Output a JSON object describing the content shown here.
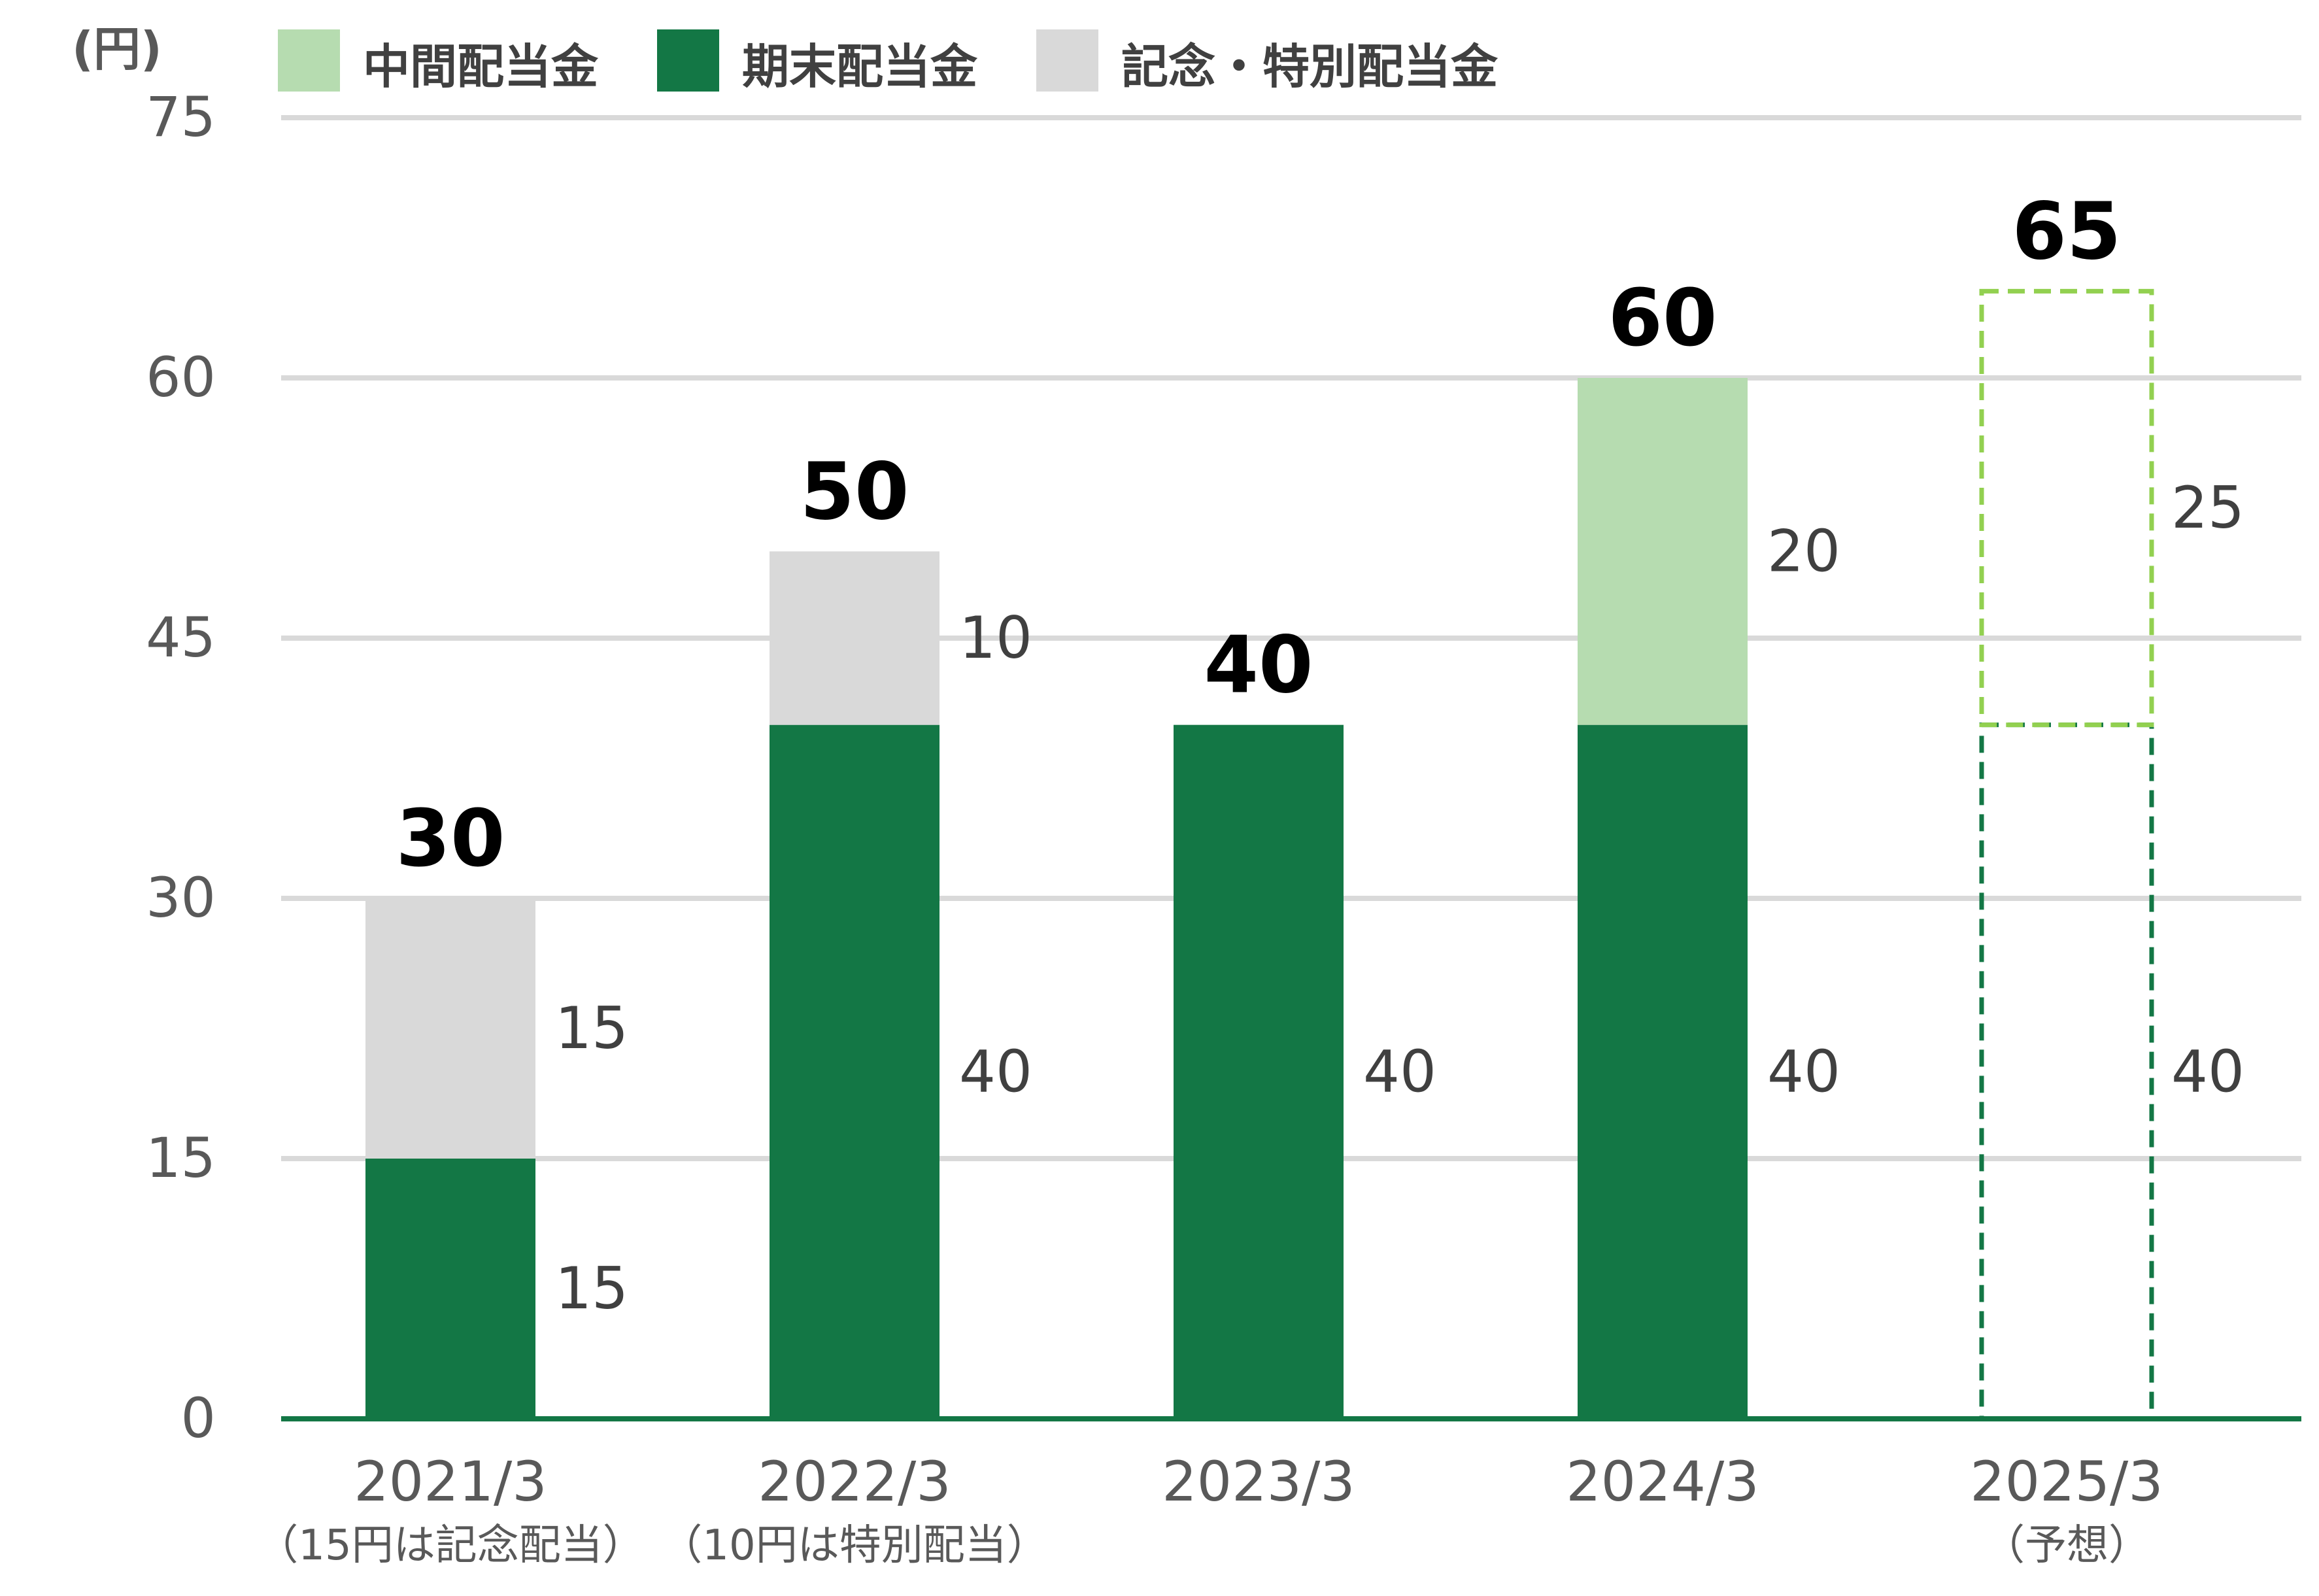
{
  "chart_data": {
    "type": "bar",
    "stacked": true,
    "unit_label": "(円)",
    "ylim": [
      0,
      75
    ],
    "yticks": [
      "0",
      "15",
      "30",
      "45",
      "60",
      "75"
    ],
    "grid": true,
    "legend_position": "top-left",
    "categories": [
      "2021/3",
      "2022/3",
      "2023/3",
      "2024/3",
      "2025/3"
    ],
    "category_notes": [
      "（15円は記念配当）",
      "（10円は特別配当）",
      "",
      "",
      "（予想）"
    ],
    "series": [
      {
        "name": "期末配当金",
        "color": "#137745",
        "values": [
          15,
          40,
          40,
          40,
          40
        ]
      },
      {
        "name": "中間配当金",
        "color": "#b6dcb0",
        "values": [
          0,
          0,
          0,
          20,
          25
        ]
      },
      {
        "name": "記念・特別配当金",
        "color": "#d9d9d9",
        "values": [
          15,
          10,
          0,
          0,
          0
        ]
      }
    ],
    "legend_order": [
      "中間配当金",
      "期末配当金",
      "記念・特別配当金"
    ],
    "forecast_index": 4,
    "forecast_colors": {
      "期末配当金": "#137745",
      "中間配当金": "#92d050"
    },
    "totals": [
      30,
      50,
      40,
      60,
      65
    ],
    "segment_labels": [
      [
        "15",
        "",
        "15"
      ],
      [
        "40",
        "",
        "10"
      ],
      [
        "40",
        "",
        ""
      ],
      [
        "40",
        "20",
        ""
      ],
      [
        "40",
        "25",
        ""
      ]
    ],
    "total_labels": [
      "30",
      "50",
      "40",
      "60",
      "65"
    ]
  }
}
